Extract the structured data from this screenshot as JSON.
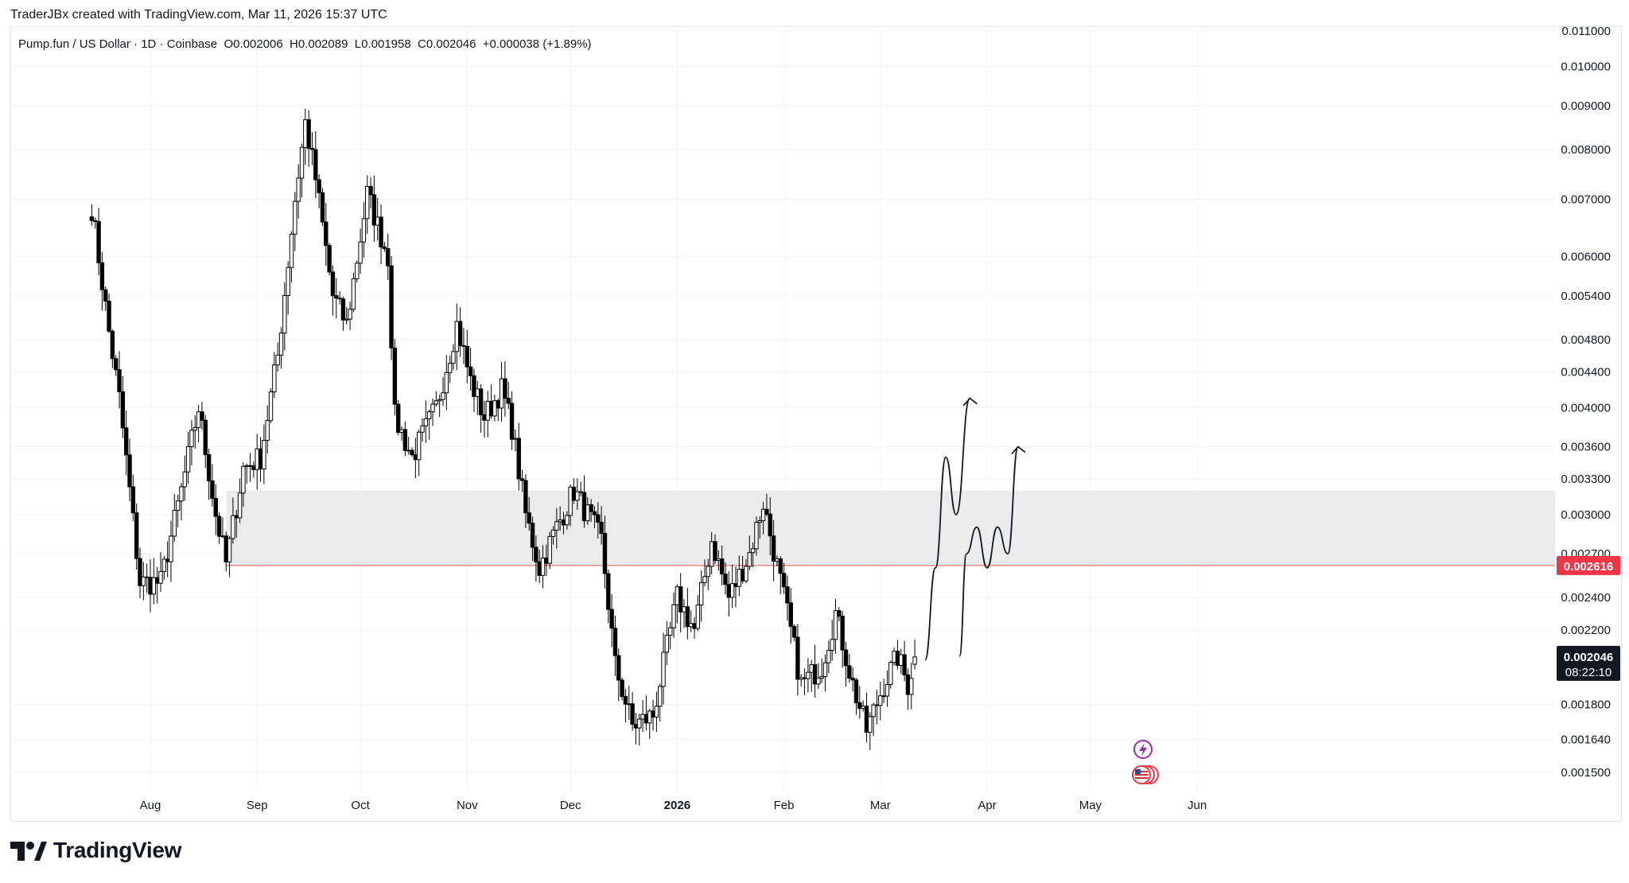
{
  "header": {
    "credit": "TraderJBx created with TradingView.com, Mar 11, 2026 15:37 UTC"
  },
  "legend": {
    "symbol": "Pump.fun / US Dollar · 1D · Coinbase",
    "open": "O0.002006",
    "high": "H0.002089",
    "low": "L0.001958",
    "close": "C0.002046",
    "change": "+0.000038 (+1.89%)"
  },
  "footer": {
    "brand": "TradingView"
  },
  "colors": {
    "zone": "#ebebeb",
    "support_line": "#e57373",
    "support_badge": "#f23645",
    "price_badge": "#131722",
    "candle_up": "#ffffff",
    "candle_down": "#000000",
    "grid": "#f0f3fa"
  },
  "chart_data": {
    "type": "candlestick",
    "scale": "log",
    "grid": true,
    "y_ticks": [
      "0.011000",
      "0.010000",
      "0.009000",
      "0.008000",
      "0.007000",
      "0.006000",
      "0.005400",
      "0.004800",
      "0.004400",
      "0.004000",
      "0.003600",
      "0.003300",
      "0.003000",
      "0.002700",
      "0.002400",
      "0.002200",
      "0.001800",
      "0.001640",
      "0.001500"
    ],
    "x_ticks": [
      {
        "label": "Aug",
        "date": "2025-08-01",
        "bold": false
      },
      {
        "label": "Sep",
        "date": "2025-09-01",
        "bold": false
      },
      {
        "label": "Oct",
        "date": "2025-10-01",
        "bold": false
      },
      {
        "label": "Nov",
        "date": "2025-11-01",
        "bold": false
      },
      {
        "label": "Dec",
        "date": "2025-12-01",
        "bold": false
      },
      {
        "label": "2026",
        "date": "2026-01-01",
        "bold": true
      },
      {
        "label": "Feb",
        "date": "2026-02-01",
        "bold": false
      },
      {
        "label": "Mar",
        "date": "2026-03-01",
        "bold": false
      },
      {
        "label": "Apr",
        "date": "2026-04-01",
        "bold": false
      },
      {
        "label": "May",
        "date": "2026-05-01",
        "bold": false
      },
      {
        "label": "Jun",
        "date": "2026-06-01",
        "bold": false
      }
    ],
    "close_path": [
      {
        "date": "2025-07-15",
        "close": 0.00685
      },
      {
        "date": "2025-07-20",
        "close": 0.0049
      },
      {
        "date": "2025-07-23",
        "close": 0.0041
      },
      {
        "date": "2025-07-29",
        "close": 0.0025
      },
      {
        "date": "2025-08-04",
        "close": 0.0025
      },
      {
        "date": "2025-08-10",
        "close": 0.0032
      },
      {
        "date": "2025-08-15",
        "close": 0.004
      },
      {
        "date": "2025-08-20",
        "close": 0.003
      },
      {
        "date": "2025-08-23",
        "close": 0.00263
      },
      {
        "date": "2025-08-28",
        "close": 0.0034
      },
      {
        "date": "2025-09-02",
        "close": 0.0035
      },
      {
        "date": "2025-09-07",
        "close": 0.0046
      },
      {
        "date": "2025-09-12",
        "close": 0.007
      },
      {
        "date": "2025-09-15",
        "close": 0.0086
      },
      {
        "date": "2025-09-18",
        "close": 0.0074
      },
      {
        "date": "2025-09-23",
        "close": 0.0054
      },
      {
        "date": "2025-09-27",
        "close": 0.005
      },
      {
        "date": "2025-10-03",
        "close": 0.0071
      },
      {
        "date": "2025-10-09",
        "close": 0.006
      },
      {
        "date": "2025-10-11",
        "close": 0.0039
      },
      {
        "date": "2025-10-16",
        "close": 0.0035
      },
      {
        "date": "2025-10-23",
        "close": 0.004
      },
      {
        "date": "2025-10-29",
        "close": 0.005
      },
      {
        "date": "2025-11-02",
        "close": 0.0043
      },
      {
        "date": "2025-11-06",
        "close": 0.0039
      },
      {
        "date": "2025-11-11",
        "close": 0.0042
      },
      {
        "date": "2025-11-14",
        "close": 0.0038
      },
      {
        "date": "2025-11-18",
        "close": 0.003
      },
      {
        "date": "2025-11-22",
        "close": 0.0026
      },
      {
        "date": "2025-11-27",
        "close": 0.0029
      },
      {
        "date": "2025-12-02",
        "close": 0.0032
      },
      {
        "date": "2025-12-06",
        "close": 0.003
      },
      {
        "date": "2025-12-10",
        "close": 0.0028
      },
      {
        "date": "2025-12-14",
        "close": 0.002
      },
      {
        "date": "2025-12-19",
        "close": 0.0017
      },
      {
        "date": "2025-12-25",
        "close": 0.00175
      },
      {
        "date": "2026-01-01",
        "close": 0.0024
      },
      {
        "date": "2026-01-06",
        "close": 0.0022
      },
      {
        "date": "2026-01-11",
        "close": 0.0028
      },
      {
        "date": "2026-01-16",
        "close": 0.0024
      },
      {
        "date": "2026-01-22",
        "close": 0.0027
      },
      {
        "date": "2026-01-26",
        "close": 0.0031
      },
      {
        "date": "2026-02-02",
        "close": 0.0023
      },
      {
        "date": "2026-02-06",
        "close": 0.0019
      },
      {
        "date": "2026-02-12",
        "close": 0.002
      },
      {
        "date": "2026-02-16",
        "close": 0.0023
      },
      {
        "date": "2026-02-21",
        "close": 0.0019
      },
      {
        "date": "2026-02-25",
        "close": 0.00168
      },
      {
        "date": "2026-03-02",
        "close": 0.0019
      },
      {
        "date": "2026-03-06",
        "close": 0.00205
      },
      {
        "date": "2026-03-09",
        "close": 0.0019
      },
      {
        "date": "2026-03-11",
        "close": 0.002046
      }
    ],
    "zone": {
      "from_date": "2025-08-23",
      "low": 0.002616,
      "high": 0.0032
    },
    "support_level": 0.002616,
    "support_label": "0.002616",
    "last_price": 0.002046,
    "last_price_label": "0.002046",
    "countdown_label": "08:22:10",
    "projections": [
      {
        "name": "projection-path-1",
        "points": [
          {
            "date": "2026-03-14",
            "price": 0.00203
          },
          {
            "date": "2026-03-17",
            "price": 0.0026
          },
          {
            "date": "2026-03-20",
            "price": 0.0035
          },
          {
            "date": "2026-03-23",
            "price": 0.003
          },
          {
            "date": "2026-03-27",
            "price": 0.0041
          }
        ]
      },
      {
        "name": "projection-path-2",
        "points": [
          {
            "date": "2026-03-24",
            "price": 0.00205
          },
          {
            "date": "2026-03-26",
            "price": 0.0027
          },
          {
            "date": "2026-03-29",
            "price": 0.0029
          },
          {
            "date": "2026-04-01",
            "price": 0.0026
          },
          {
            "date": "2026-04-04",
            "price": 0.0029
          },
          {
            "date": "2026-04-07",
            "price": 0.0027
          },
          {
            "date": "2026-04-10",
            "price": 0.0036
          }
        ]
      }
    ]
  }
}
